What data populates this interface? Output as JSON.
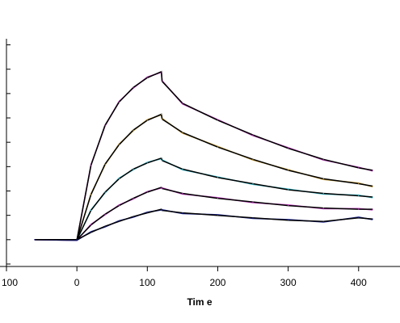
{
  "chart_data": {
    "type": "line",
    "title": "",
    "xlabel": "Tim e",
    "ylabel": "",
    "xlim": [
      -100,
      425
    ],
    "ylim": [
      -2.2,
      16.5
    ],
    "x_ticks": [
      -100,
      0,
      100,
      200,
      300,
      400
    ],
    "x_tick_labels": [
      "100",
      "0",
      "100",
      "200",
      "300",
      "400"
    ],
    "y_ticks": [
      -2,
      0,
      2,
      4,
      6,
      8,
      10,
      12,
      14,
      16
    ],
    "grid": false,
    "association_end": 120,
    "series": [
      {
        "color": "#b03ab0",
        "fit_color": "#000000",
        "x": [
          -60,
          0,
          20,
          40,
          60,
          80,
          100,
          120,
          121,
          150,
          200,
          250,
          300,
          350,
          400,
          420
        ],
        "y": [
          0,
          0,
          6.1,
          9.4,
          11.3,
          12.5,
          13.3,
          13.8,
          13.0,
          11.2,
          9.8,
          8.6,
          7.5,
          6.6,
          5.9,
          5.7
        ]
      },
      {
        "color": "#c8a040",
        "fit_color": "#000000",
        "x": [
          -60,
          0,
          20,
          40,
          60,
          80,
          100,
          120,
          121,
          150,
          200,
          250,
          300,
          350,
          400,
          420
        ],
        "y": [
          0,
          0,
          3.7,
          6.2,
          7.8,
          9.0,
          9.8,
          10.3,
          9.9,
          8.8,
          7.6,
          6.6,
          5.7,
          5.0,
          4.6,
          4.4
        ]
      },
      {
        "color": "#40c0d0",
        "fit_color": "#000000",
        "x": [
          -60,
          0,
          20,
          40,
          60,
          80,
          100,
          120,
          121,
          150,
          200,
          250,
          300,
          350,
          400,
          420
        ],
        "y": [
          0,
          0,
          2.4,
          3.9,
          5.0,
          5.8,
          6.3,
          6.7,
          6.5,
          5.8,
          5.1,
          4.6,
          4.1,
          3.8,
          3.6,
          3.5
        ]
      },
      {
        "color": "#c040c0",
        "fit_color": "#000000",
        "x": [
          -60,
          0,
          20,
          40,
          60,
          80,
          100,
          120,
          121,
          150,
          200,
          250,
          300,
          350,
          400,
          420
        ],
        "y": [
          0,
          0,
          1.2,
          2.1,
          2.8,
          3.4,
          3.9,
          4.3,
          4.2,
          3.8,
          3.4,
          3.1,
          2.8,
          2.6,
          2.5,
          2.5
        ]
      },
      {
        "color": "#202890",
        "fit_color": "#000000",
        "x": [
          -60,
          0,
          20,
          40,
          60,
          80,
          100,
          120,
          121,
          150,
          200,
          250,
          300,
          350,
          400,
          420
        ],
        "y": [
          0,
          0,
          0.6,
          1.1,
          1.5,
          1.9,
          2.2,
          2.5,
          2.4,
          2.2,
          2.0,
          1.8,
          1.6,
          1.5,
          1.8,
          1.7
        ]
      }
    ]
  }
}
